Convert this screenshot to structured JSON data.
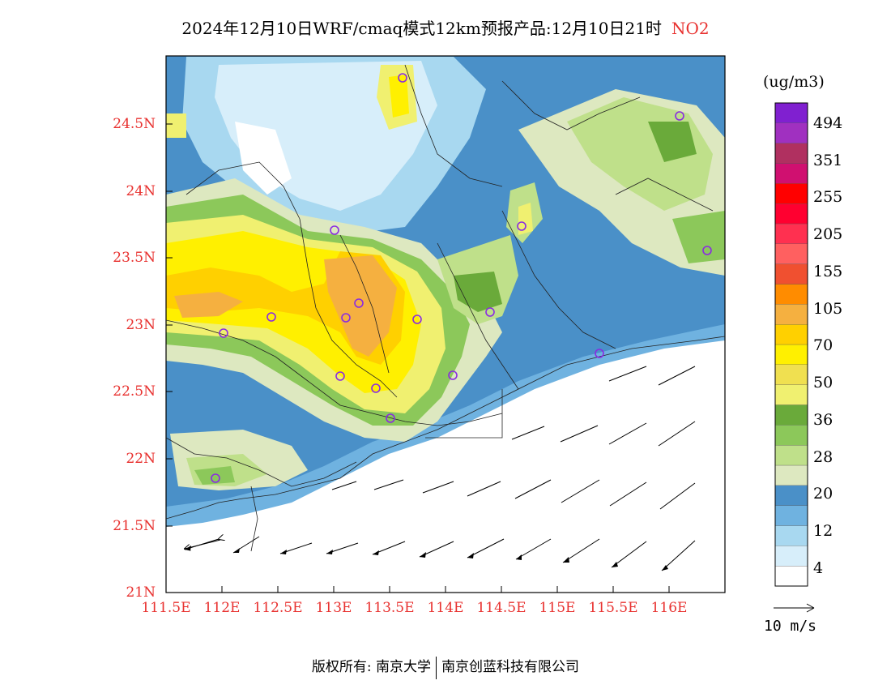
{
  "title": {
    "text": "2024年12月10日WRF/cmaq模式12km预报产品:12月10日21时",
    "pollutant": "NO2"
  },
  "axes": {
    "lat_labels": [
      "24.5N",
      "24N",
      "23.5N",
      "23N",
      "22.5N",
      "22N",
      "21.5N",
      "21N"
    ],
    "lon_labels": [
      "111.5E",
      "112E",
      "112.5E",
      "113E",
      "113.5E",
      "114E",
      "114.5E",
      "115E",
      "115.5E",
      "116E"
    ],
    "label_color": "#e8312f"
  },
  "legend": {
    "unit": "(ug/m3)",
    "tick_labels": [
      "494",
      "351",
      "255",
      "205",
      "155",
      "105",
      "70",
      "50",
      "36",
      "28",
      "20",
      "12",
      "4"
    ],
    "colors": [
      "#ffffff",
      "#d7eefa",
      "#a8d8f0",
      "#6fb2e0",
      "#4a90c8",
      "#dde8c0",
      "#bfe08a",
      "#8cc85a",
      "#6aaa3a",
      "#f0f070",
      "#f0e050",
      "#fff000",
      "#ffd000",
      "#f5b040",
      "#ff8c00",
      "#f05030",
      "#ff6060",
      "#ff3050",
      "#ff0030",
      "#ff0000",
      "#d01070",
      "#b03060",
      "#a030c0",
      "#8020d0"
    ]
  },
  "wind_reference": {
    "label": "10 m/s"
  },
  "copyright": {
    "left": "版权所有: 南京大学",
    "right": "南京创蓝科技有限公司"
  }
}
